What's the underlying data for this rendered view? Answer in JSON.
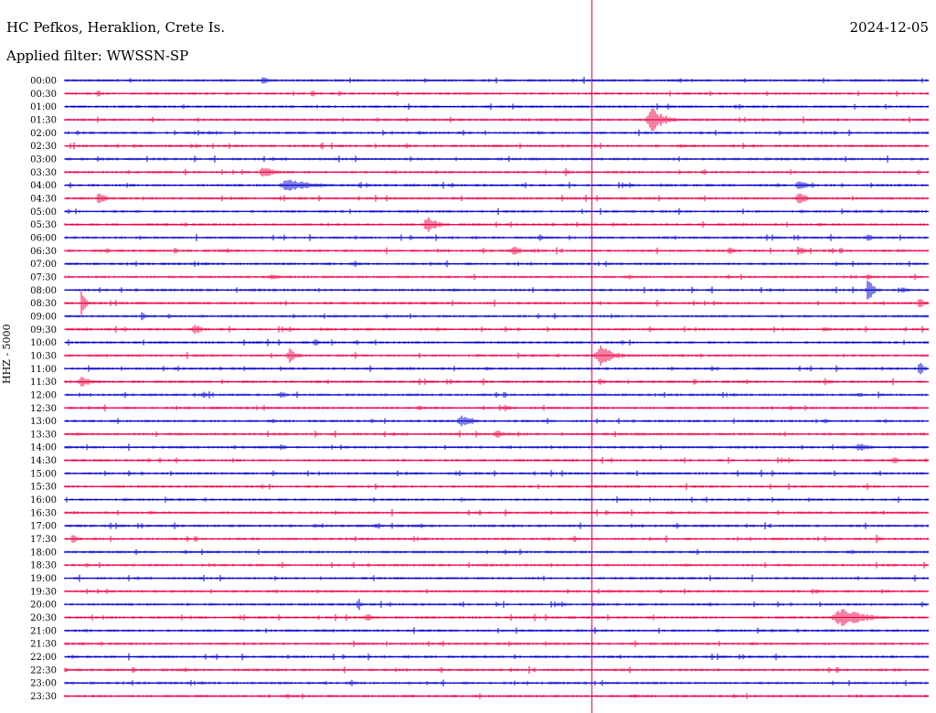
{
  "header": {
    "title": "HC Pefkos, Heraklion, Crete Is.",
    "date": "2024-12-05",
    "filter": "Applied filter: WWSSN-SP"
  },
  "chart_data": {
    "type": "line",
    "ylabel": "HHZ - 5000",
    "time_labels": [
      "00:00",
      "00:30",
      "01:00",
      "01:30",
      "02:00",
      "02:30",
      "03:00",
      "03:30",
      "04:00",
      "04:30",
      "05:00",
      "05:30",
      "06:00",
      "06:30",
      "07:00",
      "07:30",
      "08:00",
      "08:30",
      "09:00",
      "09:30",
      "10:00",
      "10:30",
      "11:00",
      "11:30",
      "12:00",
      "12:30",
      "13:00",
      "13:30",
      "14:00",
      "14:30",
      "15:00",
      "15:30",
      "16:00",
      "16:30",
      "17:00",
      "17:30",
      "18:00",
      "18:30",
      "19:00",
      "19:30",
      "20:00",
      "20:30",
      "21:00",
      "21:30",
      "22:00",
      "22:30",
      "23:00",
      "23:30"
    ],
    "colors": {
      "even": "#0000cc",
      "odd": "#ee0044",
      "marker": "#dd0077"
    },
    "current_time_fraction": 0.625,
    "events": [
      [
        0,
        0.23,
        4,
        18
      ],
      [
        1,
        0.32,
        2,
        14
      ],
      [
        3,
        0.68,
        14,
        28
      ],
      [
        7,
        0.23,
        8,
        20
      ],
      [
        7,
        0.58,
        5,
        8
      ],
      [
        7,
        0.74,
        4,
        8
      ],
      [
        8,
        0.26,
        7,
        60
      ],
      [
        8,
        0.85,
        6,
        20
      ],
      [
        9,
        0.04,
        7,
        14
      ],
      [
        9,
        0.85,
        7,
        20
      ],
      [
        11,
        0.42,
        11,
        20
      ],
      [
        12,
        0.55,
        4,
        14
      ],
      [
        12,
        0.93,
        5,
        14
      ],
      [
        13,
        0.52,
        6,
        16
      ],
      [
        13,
        0.77,
        5,
        10
      ],
      [
        13,
        0.85,
        6,
        14
      ],
      [
        15,
        0.24,
        5,
        14
      ],
      [
        15,
        0.93,
        5,
        10
      ],
      [
        16,
        0.93,
        14,
        10
      ],
      [
        16,
        0.97,
        5,
        12
      ],
      [
        17,
        0.02,
        18,
        6
      ],
      [
        17,
        0.99,
        6,
        12
      ],
      [
        18,
        0.09,
        6,
        8
      ],
      [
        18,
        0.12,
        4,
        6
      ],
      [
        19,
        0.15,
        7,
        16
      ],
      [
        19,
        0.88,
        4,
        8
      ],
      [
        20,
        0.29,
        4,
        12
      ],
      [
        21,
        0.26,
        8,
        16
      ],
      [
        21,
        0.62,
        12,
        30
      ],
      [
        22,
        0.75,
        4,
        6
      ],
      [
        22,
        0.99,
        10,
        8
      ],
      [
        23,
        0.02,
        6,
        24
      ],
      [
        23,
        0.62,
        4,
        14
      ],
      [
        23,
        0.88,
        4,
        14
      ],
      [
        24,
        0.16,
        5,
        8
      ],
      [
        24,
        0.25,
        5,
        10
      ],
      [
        24,
        0.92,
        4,
        8
      ],
      [
        25,
        0.41,
        3,
        12
      ],
      [
        25,
        0.51,
        4,
        14
      ],
      [
        26,
        0.46,
        8,
        26
      ],
      [
        26,
        0.88,
        4,
        10
      ],
      [
        27,
        0.5,
        5,
        16
      ],
      [
        28,
        0.25,
        4,
        10
      ],
      [
        28,
        0.92,
        5,
        26
      ],
      [
        29,
        0.96,
        5,
        12
      ],
      [
        31,
        0.36,
        4,
        6
      ],
      [
        32,
        0.46,
        3,
        12
      ],
      [
        34,
        0.29,
        3,
        16
      ],
      [
        34,
        0.36,
        3,
        14
      ],
      [
        35,
        0.01,
        5,
        14
      ],
      [
        35,
        0.94,
        5,
        6
      ],
      [
        39,
        0.87,
        4,
        6
      ],
      [
        40,
        0.34,
        8,
        6
      ],
      [
        40,
        0.5,
        3,
        6
      ],
      [
        41,
        0.35,
        5,
        14
      ],
      [
        41,
        0.9,
        10,
        60
      ]
    ]
  }
}
